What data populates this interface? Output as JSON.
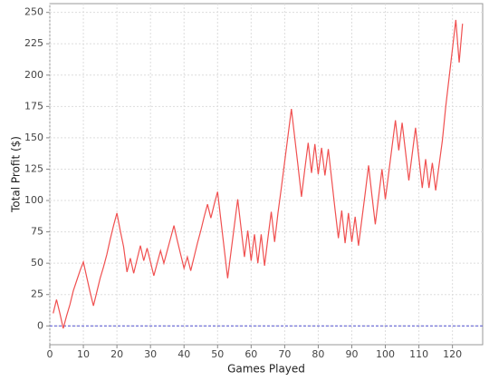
{
  "chart_data": {
    "type": "line",
    "x_label": "Games Played",
    "y_label": "Total Profit ($)",
    "x": [
      1,
      2,
      3,
      4,
      5,
      6,
      7,
      8,
      9,
      10,
      11,
      12,
      13,
      14,
      15,
      16,
      17,
      18,
      19,
      20,
      21,
      22,
      23,
      24,
      25,
      26,
      27,
      28,
      29,
      30,
      31,
      32,
      33,
      34,
      35,
      36,
      37,
      38,
      39,
      40,
      41,
      42,
      43,
      44,
      45,
      46,
      47,
      48,
      49,
      50,
      51,
      52,
      53,
      54,
      55,
      56,
      57,
      58,
      59,
      60,
      61,
      62,
      63,
      64,
      65,
      66,
      67,
      68,
      69,
      70,
      71,
      72,
      73,
      74,
      75,
      76,
      77,
      78,
      79,
      80,
      81,
      82,
      83,
      84,
      85,
      86,
      87,
      88,
      89,
      90,
      91,
      92,
      93,
      94,
      95,
      96,
      97,
      98,
      99,
      100,
      101,
      102,
      103,
      104,
      105,
      106,
      107,
      108,
      109,
      110,
      111,
      112,
      113,
      114,
      115,
      116,
      117,
      118,
      119,
      120,
      121,
      122,
      123
    ],
    "values": [
      10,
      21,
      10,
      -2,
      8,
      17,
      28,
      36,
      44,
      51,
      39,
      27,
      16,
      27,
      38,
      47,
      57,
      69,
      80,
      90,
      76,
      63,
      43,
      54,
      42,
      53,
      64,
      52,
      62,
      51,
      40,
      50,
      60,
      50,
      60,
      70,
      80,
      68,
      57,
      46,
      55,
      44,
      55,
      66,
      76,
      87,
      97,
      86,
      97,
      107,
      84,
      61,
      38,
      59,
      80,
      101,
      78,
      55,
      76,
      52,
      73,
      50,
      73,
      48,
      70,
      91,
      67,
      90,
      110,
      131,
      152,
      173,
      150,
      127,
      103,
      125,
      146,
      122,
      145,
      121,
      142,
      120,
      141,
      117,
      93,
      70,
      92,
      66,
      90,
      67,
      87,
      64,
      85,
      106,
      128,
      104,
      81,
      103,
      125,
      101,
      122,
      143,
      164,
      140,
      162,
      139,
      116,
      137,
      158,
      134,
      110,
      133,
      110,
      130,
      108,
      128,
      148,
      175,
      198,
      221,
      244,
      210,
      241
    ],
    "color": "#f05050",
    "baseline": 0,
    "baseline_color": "#5050d0",
    "xlim": [
      0,
      129
    ],
    "ylim": [
      -15,
      257
    ],
    "xticks": [
      0,
      10,
      20,
      30,
      40,
      50,
      60,
      70,
      80,
      90,
      100,
      110,
      120
    ],
    "yticks": [
      0,
      25,
      50,
      75,
      100,
      125,
      150,
      175,
      200,
      225,
      250
    ],
    "grid": true
  }
}
